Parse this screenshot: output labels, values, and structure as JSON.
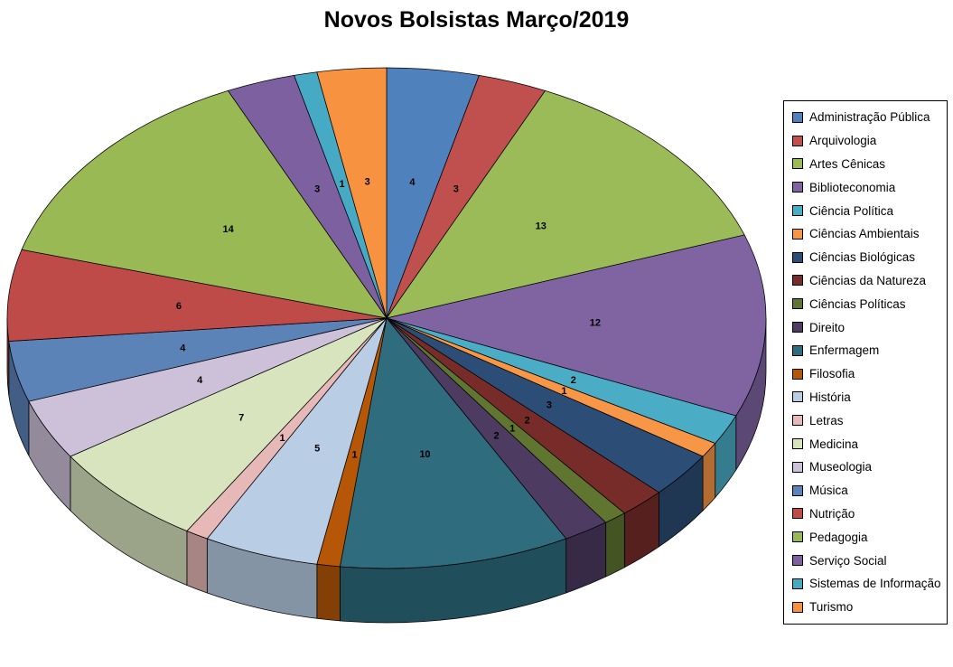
{
  "title": "Novos Bolsistas Março/2019",
  "chart_data": {
    "type": "pie",
    "effect": "3d",
    "title": "Novos Bolsistas Março/2019",
    "legend_position": "right",
    "data_labels": "values",
    "total": 102,
    "start_angle_deg": 0,
    "direction": "clockwise",
    "categories": [
      "Administração Pública",
      "Arquivologia",
      "Artes Cênicas",
      "Biblioteconomia",
      "Ciência Política",
      "Ciências Ambientais",
      "Ciências Biológicas",
      "Ciências da Natureza",
      "Ciências Políticas",
      "Direito",
      "Enfermagem",
      "Filosofia",
      "História",
      "Letras",
      "Medicina",
      "Museologia",
      "Música",
      "Nutrição",
      "Pedagogia",
      "Serviço Social",
      "Sistemas de Informação",
      "Turismo"
    ],
    "values": [
      4,
      3,
      13,
      12,
      2,
      1,
      3,
      2,
      1,
      2,
      10,
      1,
      5,
      1,
      7,
      4,
      4,
      6,
      14,
      3,
      1,
      3
    ],
    "colors": [
      "#4F81BD",
      "#C0504D",
      "#9BBB59",
      "#8064A2",
      "#4BACC6",
      "#F79646",
      "#2C4D75",
      "#772C2A",
      "#5F7530",
      "#4D3B62",
      "#2E6C7E",
      "#B65708",
      "#B9CDE5",
      "#E6B9B8",
      "#D7E4BD",
      "#CCC1D9",
      "#5B83B8",
      "#BE4B48",
      "#98B954",
      "#7D60A0",
      "#46AAC5",
      "#F69240"
    ],
    "background_color": "#FFFFFF",
    "outline_color": "#000000"
  }
}
